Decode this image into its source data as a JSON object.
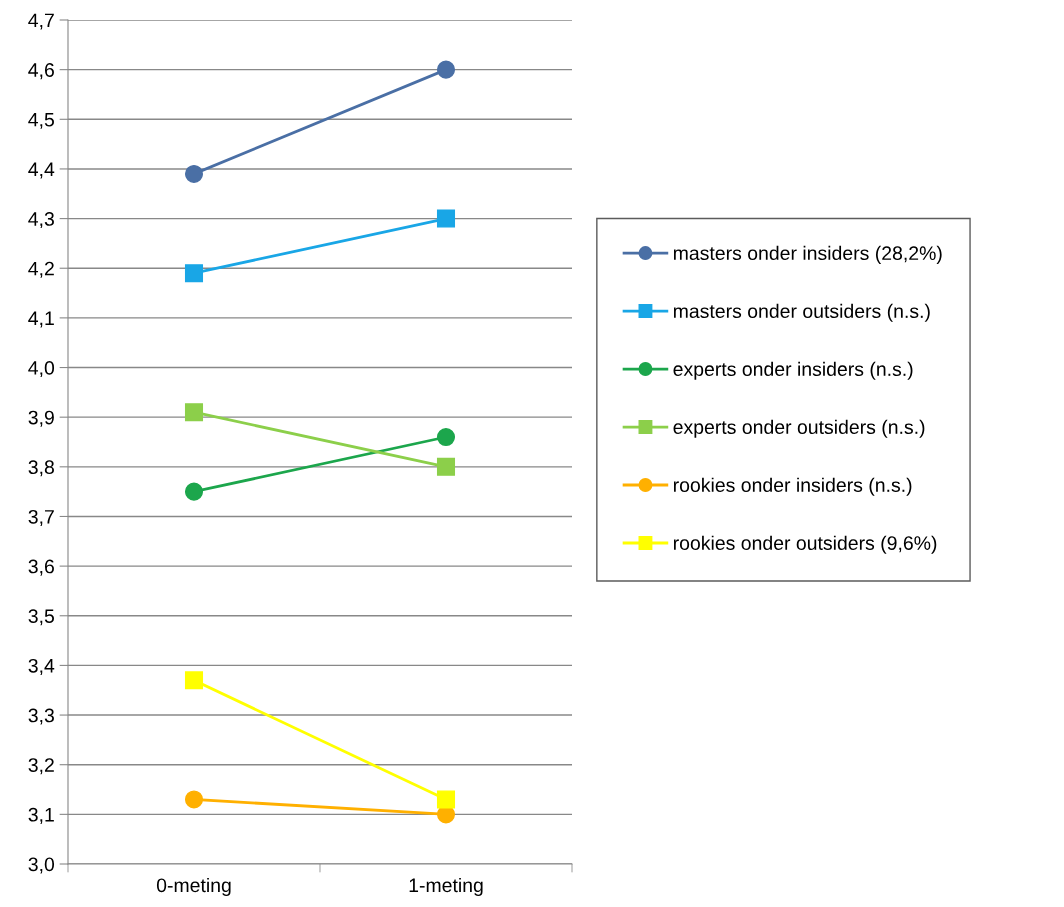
{
  "chart_data": {
    "type": "line",
    "categories": [
      "0-meting",
      "1-meting"
    ],
    "series": [
      {
        "name": "masters onder insiders (28,2%)",
        "color": "#4a6fa5",
        "marker": "circle",
        "values": [
          4.39,
          4.6
        ]
      },
      {
        "name": "masters onder outsiders (n.s.)",
        "color": "#19a6e6",
        "marker": "square",
        "values": [
          4.19,
          4.3
        ]
      },
      {
        "name": "experts onder insiders (n.s.)",
        "color": "#1ca64c",
        "marker": "circle",
        "values": [
          3.75,
          3.86
        ]
      },
      {
        "name": "experts onder outsiders (n.s.)",
        "color": "#8ccf4a",
        "marker": "square",
        "values": [
          3.91,
          3.8
        ]
      },
      {
        "name": "rookies onder insiders (n.s.)",
        "color": "#ffb000",
        "marker": "circle",
        "values": [
          3.13,
          3.1
        ]
      },
      {
        "name": "rookies onder outsiders (9,6%)",
        "color": "#ffff00",
        "marker": "square",
        "values": [
          3.37,
          3.13
        ]
      }
    ],
    "ylim": [
      3.0,
      4.7
    ],
    "yticks": [
      {
        "value": 3.0,
        "label": "3,0"
      },
      {
        "value": 3.1,
        "label": "3,1"
      },
      {
        "value": 3.2,
        "label": "3,2"
      },
      {
        "value": 3.3,
        "label": "3,3"
      },
      {
        "value": 3.4,
        "label": "3,4"
      },
      {
        "value": 3.5,
        "label": "3,5"
      },
      {
        "value": 3.6,
        "label": "3,6"
      },
      {
        "value": 3.7,
        "label": "3,7"
      },
      {
        "value": 3.8,
        "label": "3,8"
      },
      {
        "value": 3.9,
        "label": "3,9"
      },
      {
        "value": 4.0,
        "label": "4,0"
      },
      {
        "value": 4.1,
        "label": "4,1"
      },
      {
        "value": 4.2,
        "label": "4,2"
      },
      {
        "value": 4.3,
        "label": "4,3"
      },
      {
        "value": 4.4,
        "label": "4,4"
      },
      {
        "value": 4.5,
        "label": "4,5"
      },
      {
        "value": 4.6,
        "label": "4,6"
      },
      {
        "value": 4.7,
        "label": "4,7"
      }
    ],
    "grid": "y",
    "legend": "right",
    "line_style": "solid"
  }
}
